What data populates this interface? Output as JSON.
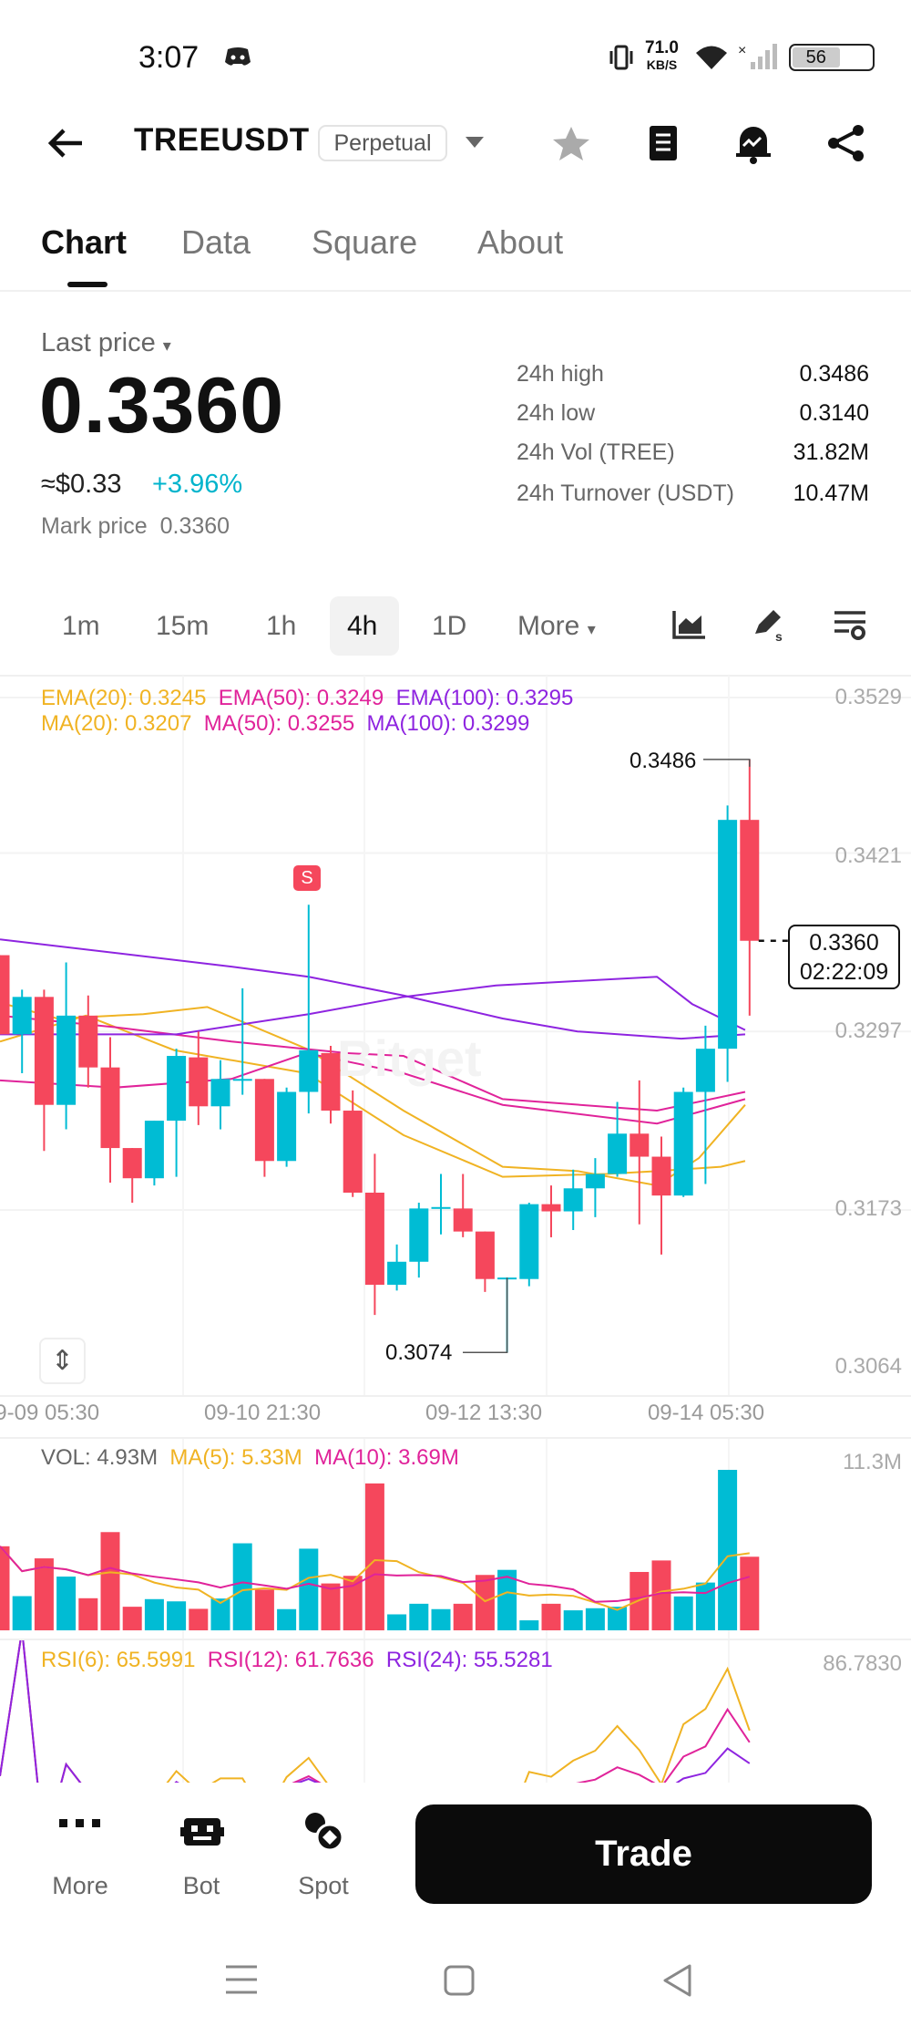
{
  "status_bar": {
    "time": "3:07",
    "net_speed": "71.0",
    "net_unit": "KB/S",
    "battery": "56"
  },
  "header": {
    "title": "TREEUSDT",
    "badge": "Perpetual",
    "icons": [
      "back-arrow-icon",
      "star-icon",
      "notebook-icon",
      "alert-bell-icon",
      "share-icon"
    ]
  },
  "tabs": [
    {
      "label": "Chart",
      "active": true
    },
    {
      "label": "Data"
    },
    {
      "label": "Square"
    },
    {
      "label": "About"
    }
  ],
  "price": {
    "label": "Last price",
    "value": "0.3360",
    "approx": "≈$0.33",
    "change": "+3.96%",
    "mark_label": "Mark price",
    "mark_value": "0.3360"
  },
  "stats": [
    {
      "label": "24h high",
      "value": "0.3486"
    },
    {
      "label": "24h low",
      "value": "0.3140"
    },
    {
      "label": "24h Vol (TREE)",
      "value": "31.82M"
    },
    {
      "label": "24h Turnover (USDT)",
      "value": "10.47M"
    }
  ],
  "intervals": [
    {
      "label": "1m"
    },
    {
      "label": "15m"
    },
    {
      "label": "1h"
    },
    {
      "label": "4h",
      "selected": true
    },
    {
      "label": "1D"
    },
    {
      "label": "More"
    }
  ],
  "toolbar_icons": [
    "indicator-chart-icon",
    "draw-pen-icon",
    "chart-settings-icon"
  ],
  "indicators": {
    "ema20": "EMA(20): 0.3245",
    "ema50": "EMA(50): 0.3249",
    "ema100": "EMA(100): 0.3295",
    "ma20": "MA(20): 0.3207",
    "ma50": "MA(50): 0.3255",
    "ma100": "MA(100): 0.3299"
  },
  "colors": {
    "up": "#00bcd4",
    "down": "#f5475c",
    "c20": "#f0b323",
    "c50": "#e0239a",
    "c100": "#8e24e0"
  },
  "watermark": "Bitget",
  "signal_marker": "S",
  "chart_data": [
    {
      "type": "candlestick",
      "ylim": [
        0.3064,
        0.3529
      ],
      "y_ticks": [
        "0.3529",
        "0.3421",
        "0.3297",
        "0.3173",
        "0.3064"
      ],
      "x_ticks": [
        "09-09 05:30",
        "09-10 21:30",
        "09-12 13:30",
        "09-14 05:30"
      ],
      "high_label": "0.3486",
      "low_label": "0.3074",
      "current_price": "0.3360",
      "countdown": "02:22:09",
      "ohlc": [
        [
          0.335,
          0.335,
          0.3295,
          0.3295
        ],
        [
          0.3295,
          0.3326,
          0.3268,
          0.3321
        ],
        [
          0.3321,
          0.3326,
          0.3214,
          0.3246
        ],
        [
          0.3246,
          0.3345,
          0.3229,
          0.3308
        ],
        [
          0.3308,
          0.3322,
          0.3258,
          0.3272
        ],
        [
          0.3272,
          0.3293,
          0.3192,
          0.3216
        ],
        [
          0.3216,
          0.3216,
          0.3178,
          0.3195
        ],
        [
          0.3195,
          0.3235,
          0.319,
          0.3235
        ],
        [
          0.3235,
          0.3285,
          0.3196,
          0.328
        ],
        [
          0.3279,
          0.3297,
          0.3232,
          0.3245
        ],
        [
          0.3245,
          0.3277,
          0.3229,
          0.3264
        ],
        [
          0.3263,
          0.3327,
          0.3253,
          0.3264
        ],
        [
          0.3264,
          0.3264,
          0.3196,
          0.3207
        ],
        [
          0.3207,
          0.3258,
          0.3203,
          0.3255
        ],
        [
          0.3255,
          0.3385,
          0.324,
          0.3284
        ],
        [
          0.3282,
          0.3287,
          0.3233,
          0.3242
        ],
        [
          0.3242,
          0.3256,
          0.3182,
          0.3185
        ],
        [
          0.3185,
          0.3212,
          0.31,
          0.3121
        ],
        [
          0.3121,
          0.3149,
          0.3117,
          0.3137
        ],
        [
          0.3137,
          0.3178,
          0.3126,
          0.3174
        ],
        [
          0.3174,
          0.3198,
          0.3156,
          0.3175
        ],
        [
          0.3174,
          0.3198,
          0.3154,
          0.3158
        ],
        [
          0.3158,
          0.3158,
          0.3116,
          0.3125
        ],
        [
          0.3125,
          0.3126,
          0.3074,
          0.3126
        ],
        [
          0.3125,
          0.3178,
          0.312,
          0.3177
        ],
        [
          0.3177,
          0.319,
          0.3154,
          0.3172
        ],
        [
          0.3172,
          0.3201,
          0.3159,
          0.3188
        ],
        [
          0.3188,
          0.3209,
          0.3168,
          0.3198
        ],
        [
          0.3198,
          0.3248,
          0.3196,
          0.3226
        ],
        [
          0.3226,
          0.3263,
          0.3163,
          0.321
        ],
        [
          0.321,
          0.3224,
          0.3142,
          0.3183
        ],
        [
          0.3183,
          0.3258,
          0.3182,
          0.3255
        ],
        [
          0.3255,
          0.3301,
          0.3191,
          0.3285
        ],
        [
          0.3285,
          0.3454,
          0.3262,
          0.3444
        ],
        [
          0.3444,
          0.3486,
          0.3308,
          0.336
        ]
      ],
      "lines": [
        {
          "name": "EMA(20)",
          "color": "#f0b323",
          "points": [
            [
              1,
              0.3317
            ],
            [
              3.6,
              0.3306
            ],
            [
              7.5,
              0.3309
            ],
            [
              10.4,
              0.3314
            ],
            [
              14.9,
              0.3285
            ],
            [
              19.3,
              0.3242
            ],
            [
              23.8,
              0.3203
            ],
            [
              27.2,
              0.32
            ],
            [
              30.8,
              0.319
            ],
            [
              32.7,
              0.3209
            ],
            [
              34.8,
              0.3246
            ]
          ]
        },
        {
          "name": "MA(20)",
          "color": "#f0b323",
          "points": [
            [
              1,
              0.329
            ],
            [
              4.9,
              0.3308
            ],
            [
              8.9,
              0.3284
            ],
            [
              14.9,
              0.3268
            ],
            [
              19.3,
              0.3225
            ],
            [
              23.8,
              0.3196
            ],
            [
              28.5,
              0.3198
            ],
            [
              30.8,
              0.32
            ],
            [
              33.7,
              0.3203
            ],
            [
              34.8,
              0.3207
            ]
          ]
        },
        {
          "name": "EMA(50)",
          "color": "#e0239a",
          "points": [
            [
              1,
              0.3263
            ],
            [
              6.2,
              0.3258
            ],
            [
              11.5,
              0.3264
            ],
            [
              14.9,
              0.3282
            ],
            [
              19.3,
              0.3268
            ],
            [
              23.8,
              0.3246
            ],
            [
              30.8,
              0.3233
            ],
            [
              34.8,
              0.325
            ]
          ]
        },
        {
          "name": "MA(50)",
          "color": "#e0239a",
          "points": [
            [
              1,
              0.3308
            ],
            [
              6.2,
              0.33
            ],
            [
              11.5,
              0.329
            ],
            [
              16.7,
              0.3282
            ],
            [
              19.3,
              0.328
            ],
            [
              23.8,
              0.325
            ],
            [
              30.8,
              0.3242
            ],
            [
              34.8,
              0.3255
            ]
          ]
        },
        {
          "name": "EMA(100)",
          "color": "#8e24e0",
          "points": [
            [
              1,
              0.3361
            ],
            [
              11.5,
              0.3342
            ],
            [
              15,
              0.3335
            ],
            [
              19.3,
              0.3322
            ],
            [
              23.8,
              0.3306
            ],
            [
              27.2,
              0.3297
            ],
            [
              31.9,
              0.3292
            ],
            [
              34.8,
              0.3295
            ]
          ]
        },
        {
          "name": "MA(100)",
          "color": "#8e24e0",
          "points": [
            [
              1,
              0.3295
            ],
            [
              9,
              0.3295
            ],
            [
              15,
              0.3309
            ],
            [
              19.3,
              0.3321
            ],
            [
              23.5,
              0.3329
            ],
            [
              30.8,
              0.3335
            ],
            [
              32.4,
              0.3316
            ],
            [
              34.8,
              0.3298
            ]
          ]
        }
      ]
    },
    {
      "type": "bar",
      "max_label": "11.3M",
      "ymax": 11.3,
      "labels": {
        "vol": "VOL: 4.93M",
        "ma5": "MA(5): 5.33M",
        "ma10": "MA(10): 3.69M"
      },
      "values": [
        5.63,
        2.29,
        4.82,
        3.6,
        2.15,
        6.58,
        1.58,
        2.09,
        1.94,
        1.44,
        2.13,
        5.83,
        2.73,
        1.42,
        5.47,
        3.14,
        3.65,
        9.84,
        1.07,
        1.78,
        1.42,
        1.78,
        3.71,
        4.05,
        0.67,
        1.78,
        1.34,
        1.48,
        1.58,
        3.91,
        4.68,
        2.27,
        3.2,
        10.75,
        4.93
      ]
    },
    {
      "type": "line",
      "max_label": "86.7830",
      "labels": {
        "rsi6": "RSI(6): 65.5991",
        "rsi12": "RSI(12): 61.7636",
        "rsi24": "RSI(24): 55.5281"
      }
    }
  ],
  "bottom_nav": {
    "items": [
      {
        "label": "More",
        "icon": "more-dots-icon"
      },
      {
        "label": "Bot",
        "icon": "bot-icon"
      },
      {
        "label": "Spot",
        "icon": "spot-icon"
      }
    ],
    "trade": "Trade"
  }
}
